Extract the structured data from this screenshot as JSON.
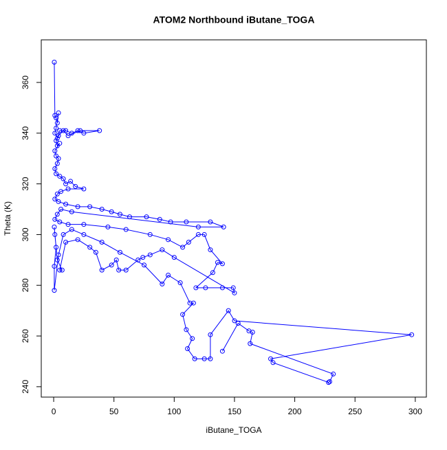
{
  "chart_data": {
    "type": "line",
    "title": "ATOM2 Northbound iButane_TOGA",
    "x_label": "iButane_TOGA",
    "y_label": "Theta (K)",
    "x": [
      0.5,
      1,
      2,
      3,
      4,
      2,
      1,
      3,
      5,
      10,
      15,
      20,
      25,
      38,
      22,
      12,
      8,
      4,
      2,
      3,
      5,
      1,
      2,
      4,
      3,
      1,
      2,
      5,
      8,
      10,
      14,
      18,
      25,
      12,
      6,
      3,
      1,
      4,
      10,
      20,
      30,
      40,
      48,
      55,
      63,
      77,
      88,
      97,
      110,
      130,
      141,
      120,
      15,
      6,
      3,
      1,
      5,
      12,
      25,
      45,
      60,
      80,
      95,
      107,
      112,
      120,
      125,
      130,
      140,
      136,
      132,
      118,
      126,
      140,
      149,
      150,
      100,
      90,
      80,
      74,
      70,
      60,
      54,
      52,
      48,
      40,
      35,
      30,
      20,
      10,
      5,
      7,
      3,
      1,
      0.5,
      2,
      0.5,
      0.5,
      4,
      8,
      15,
      25,
      40,
      55,
      75,
      90,
      95,
      105,
      113,
      116,
      107,
      110,
      115,
      111,
      117,
      125,
      130,
      130,
      145,
      150,
      297,
      180,
      182,
      228,
      229,
      232,
      163,
      165,
      162,
      153,
      140
    ],
    "series": [
      {
        "color": "#0000ff",
        "values": [
          368,
          347,
          346,
          344,
          348,
          342,
          340,
          338,
          341,
          341,
          340,
          341,
          340,
          341,
          341,
          339,
          341,
          339,
          337,
          335,
          336,
          333,
          331,
          330,
          328,
          326,
          324,
          323,
          322,
          320,
          321,
          319,
          318,
          318,
          317,
          316,
          314,
          313,
          312,
          311,
          311,
          310,
          309,
          308,
          307,
          307,
          306,
          305,
          305,
          305,
          303,
          303,
          309,
          310,
          308,
          306,
          305,
          304,
          304,
          303,
          302,
          300,
          298,
          295,
          297,
          300,
          300,
          294,
          288.5,
          289,
          285,
          279,
          279,
          279,
          279,
          277,
          291,
          294,
          292,
          291,
          290,
          286,
          286,
          290,
          288,
          286,
          293,
          295,
          298,
          297,
          286,
          286,
          290,
          300,
          303,
          295,
          287.5,
          278,
          292,
          300,
          302,
          300,
          297,
          293,
          288,
          280.5,
          284,
          281,
          273,
          273,
          268.5,
          262.5,
          259,
          255,
          251,
          251,
          251,
          260.5,
          270,
          266,
          260.5,
          251,
          249.5,
          241.7,
          242,
          245,
          257,
          261.5,
          262,
          265,
          254
        ]
      }
    ],
    "xlim": [
      -10.3,
      309.2
    ],
    "ylim": [
      235.9,
      376.8
    ],
    "xticks": [
      0,
      50,
      100,
      150,
      200,
      250,
      300
    ],
    "yticks": [
      240,
      260,
      280,
      300,
      320,
      340,
      360
    ]
  }
}
